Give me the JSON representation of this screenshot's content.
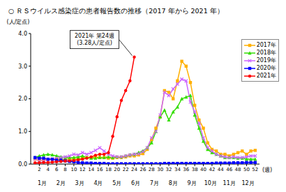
{
  "chart_data": {
    "type": "line",
    "title": "○ ＲＳウイルス感染症の患者報告数の推移（2017 年から 2021 年）",
    "y_label": "(人/定点)",
    "x_label": "(週)",
    "month_labels": [
      "1月",
      "2月",
      "3月",
      "4月",
      "5月",
      "6月",
      "7月",
      "8月",
      "9月",
      "10月",
      "11月",
      "12月"
    ],
    "x": [
      1,
      2,
      3,
      4,
      5,
      6,
      7,
      8,
      9,
      10,
      11,
      12,
      13,
      14,
      15,
      16,
      17,
      18,
      19,
      20,
      21,
      22,
      23,
      24,
      25,
      26,
      27,
      28,
      29,
      30,
      31,
      32,
      33,
      34,
      35,
      36,
      37,
      38,
      39,
      40,
      41,
      42,
      43,
      44,
      45,
      46,
      47,
      48,
      49,
      50,
      51,
      52
    ],
    "xlim": [
      0,
      53
    ],
    "xticks": [
      2,
      4,
      6,
      8,
      10,
      12,
      14,
      16,
      18,
      20,
      22,
      24,
      26,
      28,
      30,
      32,
      34,
      36,
      38,
      40,
      42,
      44,
      46,
      48,
      50,
      52
    ],
    "ylim": [
      0,
      4
    ],
    "yticks": [
      {
        "value": 0,
        "label": "0.0"
      },
      {
        "value": 1,
        "label": "1.0"
      },
      {
        "value": 2,
        "label": "2.0"
      },
      {
        "value": 3,
        "label": "3.0"
      },
      {
        "value": 4,
        "label": "4.0"
      }
    ],
    "grid": false,
    "legend": "top-right",
    "series": [
      {
        "name": "2017年",
        "color": "#ffb000",
        "marker": "square",
        "values": [
          0.15,
          0.12,
          0.12,
          0.14,
          0.15,
          0.15,
          0.14,
          0.14,
          0.15,
          0.15,
          0.16,
          0.18,
          0.2,
          0.2,
          0.22,
          0.2,
          0.2,
          0.18,
          0.18,
          0.2,
          0.2,
          0.22,
          0.25,
          0.25,
          0.28,
          0.32,
          0.45,
          0.75,
          1.1,
          1.45,
          2.25,
          2.2,
          2.0,
          2.55,
          3.15,
          3.0,
          2.5,
          1.8,
          1.35,
          1.1,
          0.65,
          0.45,
          0.4,
          0.3,
          0.3,
          0.25,
          0.3,
          0.35,
          0.4,
          0.3,
          0.4,
          0.42
        ]
      },
      {
        "name": "2018年",
        "color": "#33dd00",
        "marker": "triangle",
        "values": [
          0.2,
          0.25,
          0.28,
          0.3,
          0.28,
          0.25,
          0.22,
          0.2,
          0.2,
          0.2,
          0.22,
          0.25,
          0.2,
          0.18,
          0.18,
          0.2,
          0.2,
          0.22,
          0.2,
          0.22,
          0.22,
          0.25,
          0.28,
          0.3,
          0.35,
          0.4,
          0.5,
          0.65,
          1.0,
          1.45,
          1.65,
          1.35,
          1.6,
          1.75,
          2.0,
          2.05,
          2.1,
          1.5,
          1.1,
          0.7,
          0.45,
          0.35,
          0.3,
          0.25,
          0.2,
          0.2,
          0.2,
          0.18,
          0.18,
          0.15,
          0.15,
          0.15
        ]
      },
      {
        "name": "2019年",
        "color": "#cc66ff",
        "marker": "cross",
        "values": [
          0.15,
          0.12,
          0.12,
          0.13,
          0.15,
          0.18,
          0.2,
          0.22,
          0.25,
          0.3,
          0.28,
          0.35,
          0.3,
          0.35,
          0.42,
          0.5,
          0.4,
          0.3,
          0.25,
          0.22,
          0.22,
          0.25,
          0.28,
          0.3,
          0.32,
          0.38,
          0.5,
          0.8,
          1.0,
          1.5,
          2.2,
          2.1,
          2.3,
          2.45,
          2.6,
          2.55,
          1.9,
          1.6,
          1.25,
          0.8,
          0.5,
          0.4,
          0.3,
          0.25,
          0.22,
          0.2,
          0.22,
          0.2,
          0.2,
          0.22,
          0.25,
          0.25
        ]
      },
      {
        "name": "2020年",
        "color": "#0000ff",
        "marker": "square",
        "values": [
          0.2,
          0.18,
          0.18,
          0.15,
          0.15,
          0.12,
          0.12,
          0.1,
          0.08,
          0.07,
          0.05,
          0.04,
          0.03,
          0.03,
          0.02,
          0.02,
          0.02,
          0.01,
          0.01,
          0.01,
          0.01,
          0.01,
          0.01,
          0.01,
          0.01,
          0.01,
          0.01,
          0.01,
          0.01,
          0.01,
          0.02,
          0.02,
          0.02,
          0.02,
          0.02,
          0.02,
          0.02,
          0.02,
          0.02,
          0.02,
          0.02,
          0.02,
          0.03,
          0.03,
          0.03,
          0.03,
          0.04,
          0.04,
          0.04,
          0.05,
          0.05,
          0.05
        ]
      },
      {
        "name": "2021年",
        "color": "#ff0000",
        "marker": "circle",
        "values": [
          0.04,
          0.04,
          0.05,
          0.05,
          0.06,
          0.07,
          0.08,
          0.09,
          0.1,
          0.11,
          0.13,
          0.15,
          0.18,
          0.22,
          0.27,
          0.3,
          0.3,
          0.35,
          0.85,
          1.45,
          1.95,
          2.25,
          2.55,
          3.28,
          null,
          null,
          null,
          null,
          null,
          null,
          null,
          null,
          null,
          null,
          null,
          null,
          null,
          null,
          null,
          null,
          null,
          null,
          null,
          null,
          null,
          null,
          null,
          null,
          null,
          null,
          null,
          null
        ]
      }
    ],
    "annotations": [
      {
        "text": [
          "2021年 第24週",
          "(3.28人/定点)"
        ],
        "x": 24,
        "y": 3.28
      }
    ]
  }
}
